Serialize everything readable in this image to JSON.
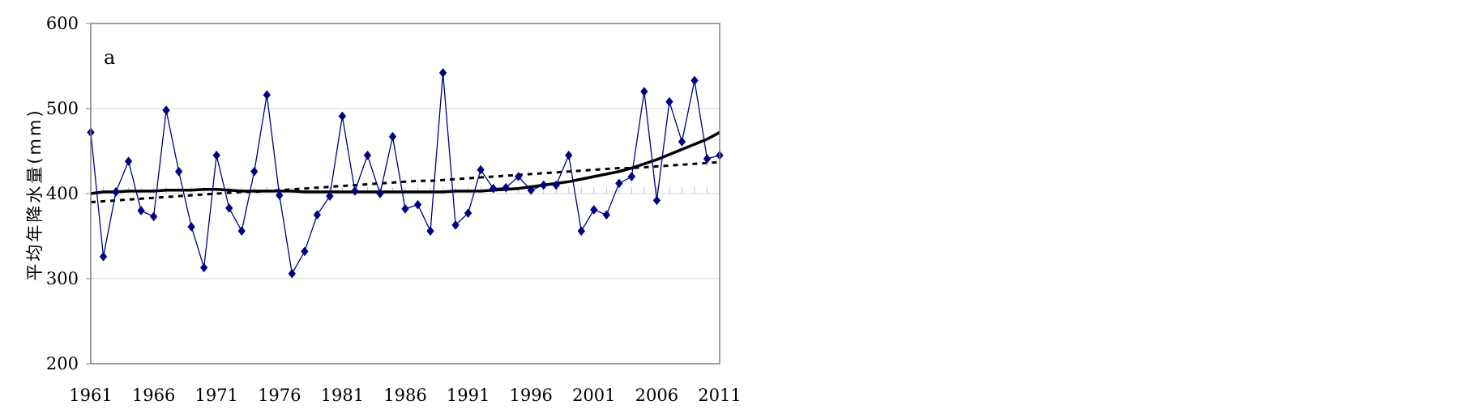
{
  "chart_data": {
    "type": "line",
    "panel_label": "a",
    "ylabel": "平均年降水量(mm)",
    "xlabel": "",
    "ylim": [
      200,
      600
    ],
    "xlim": [
      1961,
      2011
    ],
    "yticks": [
      200,
      300,
      400,
      500,
      600
    ],
    "xticks": [
      1961,
      1966,
      1971,
      1976,
      1981,
      1986,
      1991,
      1996,
      2001,
      2006,
      2011
    ],
    "grid": true,
    "legend": "none",
    "colors": {
      "observed": "#000080",
      "smooth": "#000000",
      "trend": "#000000",
      "grid": "#d9d9d9",
      "frame": "#808080"
    },
    "x": [
      1961,
      1962,
      1963,
      1964,
      1965,
      1966,
      1967,
      1968,
      1969,
      1970,
      1971,
      1972,
      1973,
      1974,
      1975,
      1976,
      1977,
      1978,
      1979,
      1980,
      1981,
      1982,
      1983,
      1984,
      1985,
      1986,
      1987,
      1988,
      1989,
      1990,
      1991,
      1992,
      1993,
      1994,
      1995,
      1996,
      1997,
      1998,
      1999,
      2000,
      2001,
      2002,
      2003,
      2004,
      2005,
      2006,
      2007,
      2008,
      2009,
      2010,
      2011
    ],
    "series": [
      {
        "style": "line-diamond",
        "values": [
          472,
          326,
          402,
          438,
          380,
          373,
          498,
          426,
          361,
          313,
          445,
          383,
          356,
          426,
          516,
          398,
          306,
          332,
          375,
          397,
          491,
          403,
          445,
          400,
          467,
          382,
          387,
          356,
          542,
          363,
          377,
          428,
          406,
          407,
          420,
          404,
          410,
          410,
          445,
          356,
          381,
          375,
          412,
          420,
          520,
          392,
          508,
          461,
          533,
          441,
          445
        ]
      },
      {
        "style": "thick-solid",
        "values": [
          400,
          402,
          402,
          403,
          403,
          403,
          404,
          404,
          404,
          405,
          405,
          404,
          403,
          403,
          403,
          403,
          403,
          402,
          402,
          402,
          402,
          402,
          402,
          402,
          402,
          402,
          402,
          402,
          402,
          403,
          403,
          403,
          404,
          405,
          406,
          408,
          410,
          412,
          414,
          417,
          420,
          423,
          426,
          430,
          435,
          440,
          446,
          452,
          458,
          464,
          472
        ]
      },
      {
        "style": "dotted",
        "values": [
          390,
          391,
          392,
          393,
          394,
          395,
          396,
          397,
          398,
          399,
          400,
          401,
          402,
          402,
          403,
          404,
          405,
          406,
          407,
          408,
          409,
          410,
          411,
          412,
          413,
          414,
          415,
          415,
          416,
          417,
          418,
          419,
          420,
          421,
          422,
          423,
          424,
          425,
          426,
          427,
          428,
          429,
          430,
          430,
          431,
          432,
          433,
          434,
          435,
          436,
          437
        ]
      }
    ]
  }
}
